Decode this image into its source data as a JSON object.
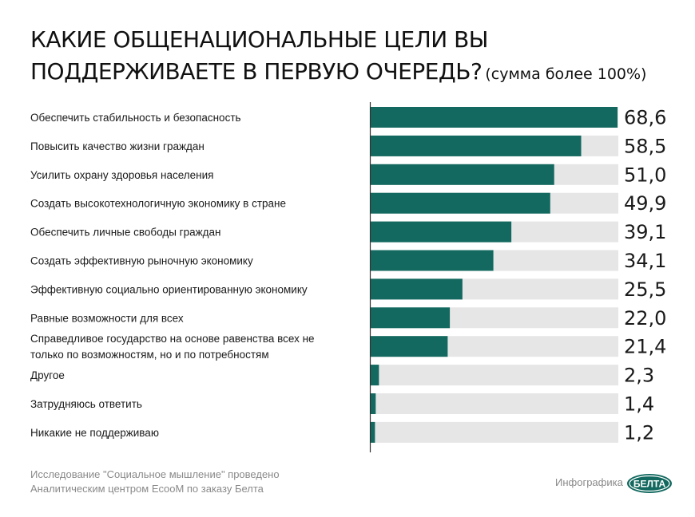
{
  "header": {
    "title_line1": "КАКИЕ ОБЩЕНАЦИОНАЛЬНЫЕ ЦЕЛИ ВЫ",
    "title_line2": "ПОДДЕРЖИВАЕТЕ В ПЕРВУЮ ОЧЕРЕДЬ?",
    "subtitle": "(сумма более 100%)"
  },
  "colors": {
    "bar": "#13695f",
    "track": "#e6e6e6",
    "axis": "#333333"
  },
  "chart_data": {
    "type": "bar",
    "orientation": "horizontal",
    "categories": [
      [
        "Обеспечить стабильность и безопасность"
      ],
      [
        "Повысить качество жизни граждан"
      ],
      [
        "Усилить охрану здоровья населения"
      ],
      [
        "Создать высокотехнологичную экономику в стране"
      ],
      [
        "Обеспечить личные свободы граждан"
      ],
      [
        "Создать эффективную рыночную экономику"
      ],
      [
        "Эффективную социально ориентированную экономику"
      ],
      [
        "Равные возможности для всех"
      ],
      [
        "Справедливое государство на основе равенства всех не",
        "только по возможностям, но и по потребностям"
      ],
      [
        "Другое"
      ],
      [
        "Затрудняюсь ответить"
      ],
      [
        "Никакие не поддерживаю"
      ]
    ],
    "values": [
      68.6,
      58.5,
      51.0,
      49.9,
      39.1,
      34.1,
      25.5,
      22.0,
      21.4,
      2.3,
      1.4,
      1.2
    ],
    "value_labels": [
      "68,6",
      "58,5",
      "51,0",
      "49,9",
      "39,1",
      "34,1",
      "25,5",
      "22,0",
      "21,4",
      "2,3",
      "1,4",
      "1,2"
    ],
    "xlim": [
      0,
      68.6
    ],
    "grid": false,
    "legend": "none"
  },
  "footer": {
    "note_line1": "Исследование \"Социальное мышление\" проведено",
    "note_line2": "Аналитическим центром EcooM по заказу Белта",
    "label": "Инфографика",
    "logo_text": "БЕЛТА"
  }
}
